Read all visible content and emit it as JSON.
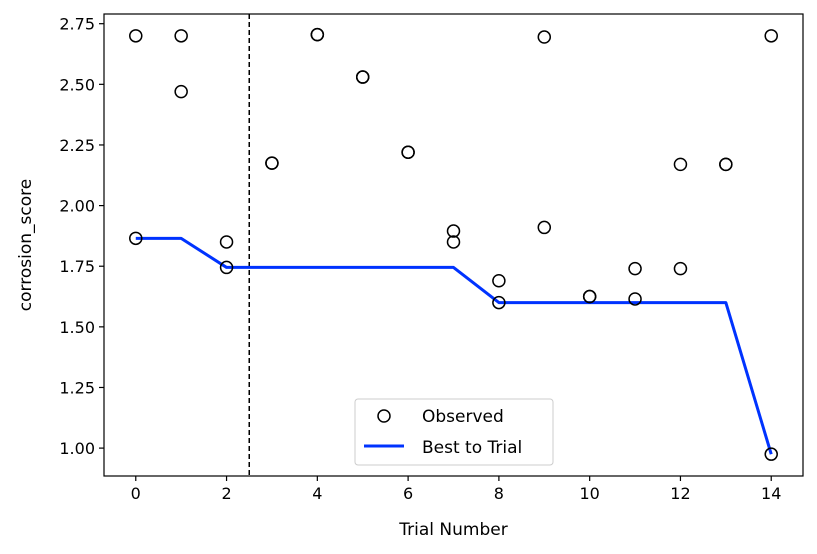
{
  "chart_data": {
    "type": "scatter",
    "title": "",
    "xlabel": "Trial Number",
    "ylabel": "corrosion_score",
    "xlim": [
      -0.7,
      14.7
    ],
    "ylim": [
      0.885,
      2.79
    ],
    "xticks": [
      "0",
      "2",
      "4",
      "6",
      "8",
      "10",
      "12",
      "14"
    ],
    "yticks": [
      "1.00",
      "1.25",
      "1.50",
      "1.75",
      "2.00",
      "2.25",
      "2.50",
      "2.75"
    ],
    "grid": false,
    "legend_position": "bottom-center",
    "vline_x": 2.5,
    "series": [
      {
        "name": "Observed",
        "kind": "scatter",
        "points": [
          {
            "x": 0,
            "y": 2.7
          },
          {
            "x": 0,
            "y": 1.865
          },
          {
            "x": 1,
            "y": 2.7
          },
          {
            "x": 1,
            "y": 2.47
          },
          {
            "x": 2,
            "y": 1.85
          },
          {
            "x": 2,
            "y": 1.745
          },
          {
            "x": 3,
            "y": 2.175
          },
          {
            "x": 3,
            "y": 2.175
          },
          {
            "x": 4,
            "y": 2.705
          },
          {
            "x": 4,
            "y": 2.705
          },
          {
            "x": 5,
            "y": 2.53
          },
          {
            "x": 5,
            "y": 2.53
          },
          {
            "x": 6,
            "y": 2.22
          },
          {
            "x": 6,
            "y": 2.22
          },
          {
            "x": 7,
            "y": 1.895
          },
          {
            "x": 7,
            "y": 1.85
          },
          {
            "x": 8,
            "y": 1.69
          },
          {
            "x": 8,
            "y": 1.6
          },
          {
            "x": 9,
            "y": 2.695
          },
          {
            "x": 9,
            "y": 1.91
          },
          {
            "x": 10,
            "y": 1.625
          },
          {
            "x": 10,
            "y": 1.625
          },
          {
            "x": 11,
            "y": 1.74
          },
          {
            "x": 11,
            "y": 1.615
          },
          {
            "x": 12,
            "y": 2.17
          },
          {
            "x": 12,
            "y": 1.74
          },
          {
            "x": 13,
            "y": 2.17
          },
          {
            "x": 13,
            "y": 2.17
          },
          {
            "x": 14,
            "y": 2.7
          },
          {
            "x": 14,
            "y": 0.975
          }
        ]
      },
      {
        "name": "Best to Trial",
        "kind": "line",
        "color": "#0033ff",
        "x": [
          0,
          1,
          2,
          3,
          4,
          5,
          6,
          7,
          8,
          9,
          10,
          11,
          12,
          13,
          14
        ],
        "y": [
          1.865,
          1.865,
          1.745,
          1.745,
          1.745,
          1.745,
          1.745,
          1.745,
          1.6,
          1.6,
          1.6,
          1.6,
          1.6,
          1.6,
          0.975
        ]
      }
    ]
  }
}
